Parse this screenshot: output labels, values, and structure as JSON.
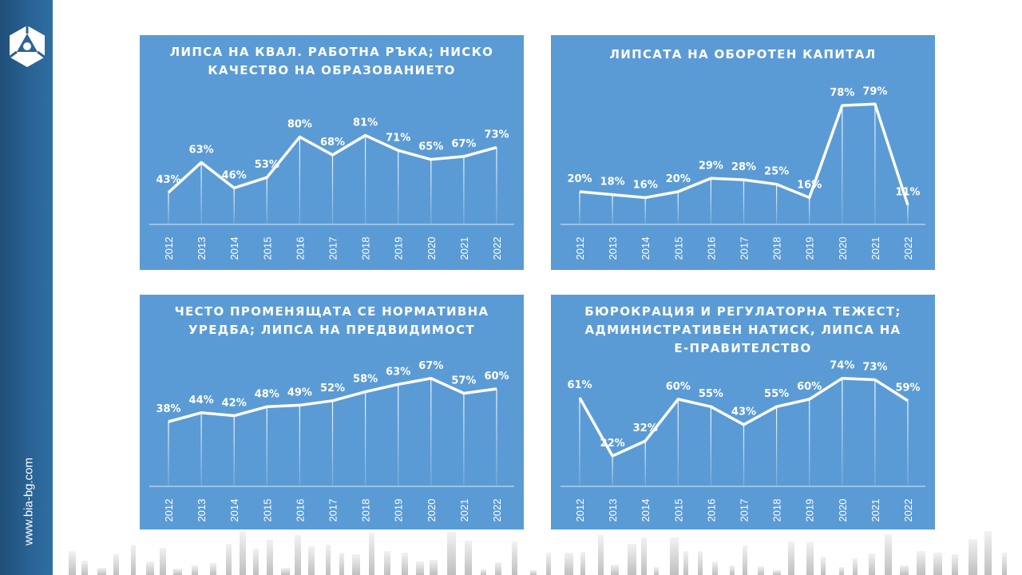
{
  "site": {
    "url": "www.bia-bg.com"
  },
  "colors": {
    "panel": "#5b9bd5",
    "sidebar": "#1f4e79",
    "line": "#ffffff"
  },
  "logo_icon": "bia-hexagon-logo",
  "chart_data": [
    {
      "type": "line",
      "title": "ЛИПСА НА КВАЛ. РАБОТНА РЪКА; НИСКО КАЧЕСТВО НА ОБРАЗОВАНИЕТО",
      "categories": [
        "2012",
        "2013",
        "2014",
        "2015",
        "2016",
        "2017",
        "2018",
        "2019",
        "2020",
        "2021",
        "2022"
      ],
      "values": [
        43,
        63,
        46,
        53,
        80,
        68,
        81,
        71,
        65,
        67,
        73
      ],
      "labels": [
        "43%",
        "63%",
        "46%",
        "53%",
        "80%",
        "68%",
        "81%",
        "71%",
        "65%",
        "67%",
        "73%"
      ],
      "ylim": [
        0,
        100
      ],
      "grid": false
    },
    {
      "type": "line",
      "title": "ЛИПСАТА НА ОБОРОТЕН КАПИТАЛ",
      "categories": [
        "2012",
        "2013",
        "2014",
        "2015",
        "2016",
        "2017",
        "2018",
        "2019",
        "2020",
        "2021",
        "2022"
      ],
      "values": [
        20,
        18,
        16,
        20,
        29,
        28,
        25,
        16,
        78,
        79,
        11
      ],
      "labels": [
        "20%",
        "18%",
        "16%",
        "20%",
        "29%",
        "28%",
        "25%",
        "16%",
        "78%",
        "79%",
        "11%"
      ],
      "ylim": [
        0,
        100
      ],
      "grid": false
    },
    {
      "type": "line",
      "title": "ЧЕСТО ПРОМЕНЯЩАТА СЕ НОРМАТИВНА УРЕДБА; ЛИПСА НА ПРЕДВИДИМОСТ",
      "categories": [
        "2012",
        "2013",
        "2014",
        "2015",
        "2016",
        "2017",
        "2018",
        "2019",
        "2020",
        "2021",
        "2022"
      ],
      "values": [
        38,
        44,
        42,
        48,
        49,
        52,
        58,
        63,
        67,
        57,
        60
      ],
      "labels": [
        "38%",
        "44%",
        "42%",
        "48%",
        "49%",
        "52%",
        "58%",
        "63%",
        "67%",
        "57%",
        "60%"
      ],
      "ylim": [
        0,
        100
      ],
      "grid": false
    },
    {
      "type": "line",
      "title": "БЮРОКРАЦИЯ И РЕГУЛАТОРНА ТЕЖЕСТ; АДМИНИСТРАТИВЕН НАТИСК, ЛИПСА НА Е-ПРАВИТЕЛСТВО",
      "categories": [
        "2012",
        "2013",
        "2014",
        "2015",
        "2016",
        "2017",
        "2018",
        "2019",
        "2020",
        "2021",
        "2022"
      ],
      "values": [
        61,
        22,
        32,
        60,
        55,
        43,
        55,
        60,
        74,
        73,
        59
      ],
      "labels": [
        "61%",
        "22%",
        "32%",
        "60%",
        "55%",
        "43%",
        "55%",
        "60%",
        "74%",
        "73%",
        "59%"
      ],
      "ylim": [
        0,
        100
      ],
      "grid": false
    }
  ]
}
